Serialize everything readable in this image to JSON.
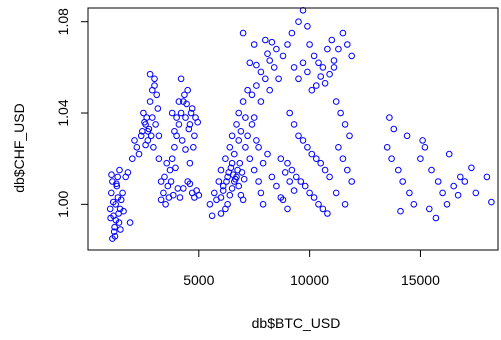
{
  "chart_data": {
    "type": "scatter",
    "title": "",
    "xlabel": "db$BTC_USD",
    "ylabel": "db$CHF_USD",
    "xlim": [
      0,
      18500
    ],
    "ylim": [
      0.98,
      1.086
    ],
    "xticks": [
      5000,
      10000,
      15000
    ],
    "yticks": [
      1.0,
      1.04,
      1.08
    ],
    "xtick_labels": [
      "5000",
      "10000",
      "15000"
    ],
    "ytick_labels": [
      "1.00",
      "1.04",
      "1.08"
    ],
    "marker": "open-circle",
    "color": "#0000ff",
    "grid": false,
    "legend": "none",
    "points": [
      [
        1000,
        0.998
      ],
      [
        1050,
        1.005
      ],
      [
        1100,
        1.01
      ],
      [
        1150,
        0.995
      ],
      [
        1200,
        0.99
      ],
      [
        1250,
        1.0
      ],
      [
        1300,
        1.008
      ],
      [
        1350,
        1.003
      ],
      [
        1400,
        0.992
      ],
      [
        1450,
        0.998
      ],
      [
        1100,
        0.985
      ],
      [
        1180,
        0.988
      ],
      [
        1260,
        0.993
      ],
      [
        1340,
        1.012
      ],
      [
        1420,
        1.015
      ],
      [
        1500,
        1.002
      ],
      [
        1060,
        1.013
      ],
      [
        1220,
        0.986
      ],
      [
        1380,
        0.996
      ],
      [
        1560,
        1.005
      ],
      [
        1020,
        0.994
      ],
      [
        1140,
        1.001
      ],
      [
        1280,
        1.009
      ],
      [
        1460,
        0.989
      ],
      [
        1600,
        0.997
      ],
      [
        1700,
        1.012
      ],
      [
        1800,
        1.014
      ],
      [
        1900,
        0.992
      ],
      [
        2000,
        1.02
      ],
      [
        2200,
        1.025
      ],
      [
        2400,
        1.03
      ],
      [
        2500,
        1.04
      ],
      [
        2600,
        1.035
      ],
      [
        2700,
        1.028
      ],
      [
        2800,
        1.045
      ],
      [
        2900,
        1.05
      ],
      [
        3000,
        1.055
      ],
      [
        3100,
        1.048
      ],
      [
        2300,
        1.022
      ],
      [
        2450,
        1.032
      ],
      [
        2550,
        1.036
      ],
      [
        2650,
        1.038
      ],
      [
        2750,
        1.033
      ],
      [
        2850,
        1.03
      ],
      [
        2950,
        1.025
      ],
      [
        3050,
        1.035
      ],
      [
        3150,
        1.042
      ],
      [
        2100,
        1.028
      ],
      [
        2800,
        1.057
      ],
      [
        3000,
        1.052
      ],
      [
        2900,
        1.038
      ],
      [
        2700,
        1.032
      ],
      [
        2600,
        1.026
      ],
      [
        3200,
        1.03
      ],
      [
        3200,
        1.02
      ],
      [
        3300,
        1.01
      ],
      [
        3400,
        1.005
      ],
      [
        3500,
        1.0
      ],
      [
        3600,
        1.008
      ],
      [
        3700,
        1.015
      ],
      [
        3800,
        1.02
      ],
      [
        3900,
        1.025
      ],
      [
        4000,
        1.03
      ],
      [
        4100,
        1.035
      ],
      [
        3300,
        1.002
      ],
      [
        3450,
        1.012
      ],
      [
        3550,
        1.018
      ],
      [
        3650,
        1.003
      ],
      [
        3750,
        1.01
      ],
      [
        3850,
        1.004
      ],
      [
        3950,
        1.016
      ],
      [
        4050,
        1.007
      ],
      [
        4150,
        1.003
      ],
      [
        4200,
        1.04
      ],
      [
        4300,
        1.045
      ],
      [
        4400,
        1.038
      ],
      [
        4500,
        1.05
      ],
      [
        4600,
        1.035
      ],
      [
        4700,
        1.042
      ],
      [
        4800,
        1.03
      ],
      [
        4200,
        1.055
      ],
      [
        4350,
        1.048
      ],
      [
        4450,
        1.044
      ],
      [
        4550,
        1.033
      ],
      [
        4650,
        1.04
      ],
      [
        4750,
        1.025
      ],
      [
        4850,
        1.038
      ],
      [
        4950,
        1.036
      ],
      [
        3800,
        1.04
      ],
      [
        4000,
        1.038
      ],
      [
        4100,
        1.045
      ],
      [
        3900,
        1.032
      ],
      [
        4250,
        1.028
      ],
      [
        4400,
        1.024
      ],
      [
        4600,
        1.018
      ],
      [
        4500,
        1.01
      ],
      [
        4700,
        1.005
      ],
      [
        4800,
        1.003
      ],
      [
        4900,
        1.006
      ],
      [
        5000,
        1.004
      ],
      [
        4300,
        1.007
      ],
      [
        4600,
        1.009
      ],
      [
        5500,
        1.0
      ],
      [
        5700,
        1.005
      ],
      [
        5900,
        1.01
      ],
      [
        6000,
        1.015
      ],
      [
        6200,
        1.02
      ],
      [
        6400,
        1.025
      ],
      [
        6500,
        1.03
      ],
      [
        6700,
        1.035
      ],
      [
        6800,
        1.04
      ],
      [
        7000,
        1.045
      ],
      [
        5600,
        0.995
      ],
      [
        5800,
        1.002
      ],
      [
        6000,
        1.003
      ],
      [
        6100,
        1.008
      ],
      [
        6300,
        1.012
      ],
      [
        6500,
        1.018
      ],
      [
        6600,
        1.022
      ],
      [
        6800,
        1.028
      ],
      [
        6900,
        1.032
      ],
      [
        7100,
        1.038
      ],
      [
        6000,
        0.996
      ],
      [
        6200,
        0.998
      ],
      [
        6300,
        1.0
      ],
      [
        6400,
        1.004
      ],
      [
        6500,
        1.007
      ],
      [
        6600,
        1.01
      ],
      [
        6700,
        1.012
      ],
      [
        6800,
        1.008
      ],
      [
        6900,
        1.004
      ],
      [
        7000,
        1.002
      ],
      [
        6100,
        1.006
      ],
      [
        6250,
        1.01
      ],
      [
        6350,
        1.014
      ],
      [
        6450,
        1.016
      ],
      [
        6550,
        1.013
      ],
      [
        6650,
        1.011
      ],
      [
        6750,
        1.015
      ],
      [
        6850,
        1.018
      ],
      [
        6950,
        1.014
      ],
      [
        7050,
        1.011
      ],
      [
        7200,
        1.05
      ],
      [
        7400,
        1.048
      ],
      [
        7600,
        1.052
      ],
      [
        7800,
        1.045
      ],
      [
        8000,
        1.055
      ],
      [
        8200,
        1.05
      ],
      [
        8400,
        1.06
      ],
      [
        8600,
        1.055
      ],
      [
        8800,
        1.065
      ],
      [
        9000,
        1.07
      ],
      [
        7300,
        1.02
      ],
      [
        7500,
        1.015
      ],
      [
        7700,
        1.025
      ],
      [
        7900,
        1.018
      ],
      [
        8100,
        1.022
      ],
      [
        8300,
        1.012
      ],
      [
        8500,
        1.008
      ],
      [
        8700,
        1.003
      ],
      [
        7100,
        1.025
      ],
      [
        7200,
        1.03
      ],
      [
        7400,
        1.035
      ],
      [
        7500,
        1.038
      ],
      [
        7600,
        1.028
      ],
      [
        7700,
        1.01
      ],
      [
        7800,
        1.005
      ],
      [
        7900,
        1.0
      ],
      [
        7000,
        1.075
      ],
      [
        7500,
        1.07
      ],
      [
        8000,
        1.072
      ],
      [
        8500,
        1.068
      ],
      [
        8200,
        1.063
      ],
      [
        7800,
        1.058
      ],
      [
        7600,
        1.061
      ],
      [
        8100,
        1.066
      ],
      [
        7300,
        1.062
      ],
      [
        8300,
        1.071
      ],
      [
        9200,
        1.075
      ],
      [
        9500,
        1.08
      ],
      [
        9700,
        1.085
      ],
      [
        9900,
        1.078
      ],
      [
        10000,
        1.07
      ],
      [
        10200,
        1.065
      ],
      [
        10400,
        1.062
      ],
      [
        10600,
        1.06
      ],
      [
        10800,
        1.068
      ],
      [
        11000,
        1.072
      ],
      [
        9300,
        1.06
      ],
      [
        9500,
        1.055
      ],
      [
        9700,
        1.062
      ],
      [
        9900,
        1.058
      ],
      [
        10100,
        1.05
      ],
      [
        10300,
        1.052
      ],
      [
        10500,
        1.056
      ],
      [
        10700,
        1.053
      ],
      [
        10900,
        1.057
      ],
      [
        11100,
        1.06
      ],
      [
        9100,
        1.04
      ],
      [
        9300,
        1.035
      ],
      [
        9500,
        1.03
      ],
      [
        9700,
        1.028
      ],
      [
        9900,
        1.025
      ],
      [
        10100,
        1.022
      ],
      [
        10300,
        1.02
      ],
      [
        10500,
        1.018
      ],
      [
        10700,
        1.015
      ],
      [
        10900,
        1.012
      ],
      [
        9000,
        1.018
      ],
      [
        9200,
        1.015
      ],
      [
        9400,
        1.012
      ],
      [
        9600,
        1.01
      ],
      [
        9800,
        1.008
      ],
      [
        10000,
        1.005
      ],
      [
        10200,
        1.003
      ],
      [
        10400,
        1.0
      ],
      [
        10600,
        0.998
      ],
      [
        10800,
        0.996
      ],
      [
        8700,
        1.02
      ],
      [
        8900,
        1.014
      ],
      [
        9100,
        1.01
      ],
      [
        9300,
        1.006
      ],
      [
        8800,
        1.002
      ],
      [
        9000,
        0.998
      ],
      [
        11200,
        1.045
      ],
      [
        11400,
        1.04
      ],
      [
        11600,
        1.035
      ],
      [
        11800,
        1.03
      ],
      [
        11300,
        1.025
      ],
      [
        11500,
        1.02
      ],
      [
        11700,
        1.015
      ],
      [
        11900,
        1.01
      ],
      [
        11200,
        1.005
      ],
      [
        11600,
        1.0
      ],
      [
        11500,
        1.075
      ],
      [
        11700,
        1.07
      ],
      [
        11900,
        1.065
      ],
      [
        11300,
        1.068
      ],
      [
        11100,
        1.063
      ],
      [
        13500,
        1.025
      ],
      [
        13700,
        1.02
      ],
      [
        14000,
        1.015
      ],
      [
        14200,
        1.01
      ],
      [
        14500,
        1.005
      ],
      [
        14700,
        1.0
      ],
      [
        15000,
        1.02
      ],
      [
        15200,
        1.025
      ],
      [
        15500,
        1.015
      ],
      [
        15800,
        1.01
      ],
      [
        16000,
        1.005
      ],
      [
        16200,
        1.0
      ],
      [
        16500,
        1.008
      ],
      [
        16800,
        1.012
      ],
      [
        17000,
        1.01
      ],
      [
        17500,
        1.005
      ],
      [
        18000,
        1.012
      ],
      [
        13800,
        1.033
      ],
      [
        13600,
        1.038
      ],
      [
        14100,
        0.997
      ],
      [
        15100,
        1.028
      ],
      [
        15400,
        0.998
      ],
      [
        16300,
        1.022
      ],
      [
        17300,
        1.016
      ],
      [
        18200,
        1.001
      ],
      [
        14400,
        1.03
      ],
      [
        15700,
        0.994
      ],
      [
        16700,
        1.004
      ]
    ]
  }
}
